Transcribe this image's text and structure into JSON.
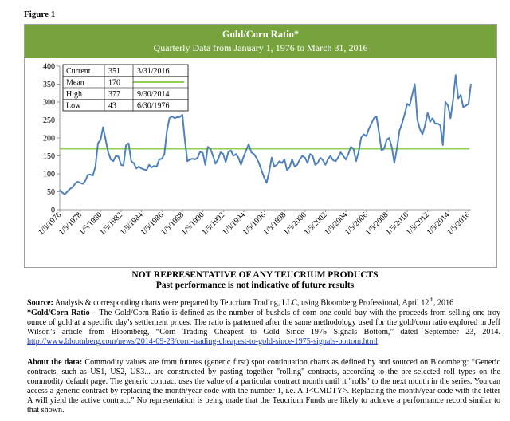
{
  "figure_label": "Figure 1",
  "chart_data": {
    "type": "line",
    "title": "Gold/Corn Ratio*",
    "subtitle": "Quarterly Data from January 1, 1976 to March 31, 2016",
    "ylim": [
      0,
      400
    ],
    "yticks": [
      0,
      50,
      100,
      150,
      200,
      250,
      300,
      350,
      400
    ],
    "xlim": [
      "1/5/1976",
      "3/31/2016"
    ],
    "xtick_labels": [
      "1/5/1976",
      "1/5/1978",
      "1/5/1980",
      "1/5/1982",
      "1/5/1984",
      "1/5/1986",
      "1/5/1988",
      "1/5/1990",
      "1/5/1992",
      "1/5/1994",
      "1/5/1996",
      "1/5/1998",
      "1/5/2000",
      "1/5/2002",
      "1/5/2004",
      "1/5/2006",
      "1/5/2008",
      "1/5/2010",
      "1/5/2012",
      "1/5/2014",
      "1/5/2016"
    ],
    "series": [
      {
        "color": "#4f81bd",
        "points": [
          [
            "1/5/1976",
            55
          ],
          [
            "4/1/1976",
            48
          ],
          [
            "6/30/1976",
            43
          ],
          [
            "10/1/1976",
            50
          ],
          [
            "1/3/1977",
            58
          ],
          [
            "4/1/1977",
            62
          ],
          [
            "7/1/1977",
            72
          ],
          [
            "10/3/1977",
            78
          ],
          [
            "1/3/1978",
            75
          ],
          [
            "4/3/1978",
            72
          ],
          [
            "7/3/1978",
            80
          ],
          [
            "10/2/1978",
            97
          ],
          [
            "1/2/1979",
            98
          ],
          [
            "4/2/1979",
            95
          ],
          [
            "7/2/1979",
            120
          ],
          [
            "10/1/1979",
            185
          ],
          [
            "1/2/1980",
            195
          ],
          [
            "4/1/1980",
            230
          ],
          [
            "7/1/1980",
            195
          ],
          [
            "10/1/1980",
            160
          ],
          [
            "1/2/1981",
            140
          ],
          [
            "4/1/1981",
            135
          ],
          [
            "7/1/1981",
            150
          ],
          [
            "10/1/1981",
            148
          ],
          [
            "1/4/1982",
            125
          ],
          [
            "4/1/1982",
            123
          ],
          [
            "7/1/1982",
            180
          ],
          [
            "10/1/1982",
            185
          ],
          [
            "1/3/1983",
            135
          ],
          [
            "4/1/1983",
            130
          ],
          [
            "7/1/1983",
            115
          ],
          [
            "10/3/1983",
            120
          ],
          [
            "1/3/1984",
            115
          ],
          [
            "4/2/1984",
            112
          ],
          [
            "7/2/1984",
            110
          ],
          [
            "10/1/1984",
            125
          ],
          [
            "1/2/1985",
            118
          ],
          [
            "4/1/1985",
            122
          ],
          [
            "7/1/1985",
            120
          ],
          [
            "10/1/1985",
            140
          ],
          [
            "1/2/1986",
            142
          ],
          [
            "4/1/1986",
            155
          ],
          [
            "7/1/1986",
            220
          ],
          [
            "10/1/1986",
            255
          ],
          [
            "1/2/1987",
            260
          ],
          [
            "4/1/1987",
            255
          ],
          [
            "7/1/1987",
            258
          ],
          [
            "10/1/1987",
            258
          ],
          [
            "1/4/1988",
            265
          ],
          [
            "4/1/1988",
            195
          ],
          [
            "7/1/1988",
            135
          ],
          [
            "10/3/1988",
            140
          ],
          [
            "1/3/1989",
            142
          ],
          [
            "4/3/1989",
            140
          ],
          [
            "7/3/1989",
            145
          ],
          [
            "10/2/1989",
            162
          ],
          [
            "1/2/1990",
            158
          ],
          [
            "4/2/1990",
            125
          ],
          [
            "7/2/1990",
            175
          ],
          [
            "10/1/1990",
            170
          ],
          [
            "1/2/1991",
            150
          ],
          [
            "4/1/1991",
            128
          ],
          [
            "7/1/1991",
            140
          ],
          [
            "10/1/1991",
            160
          ],
          [
            "1/2/1992",
            155
          ],
          [
            "4/1/1992",
            132
          ],
          [
            "7/1/1992",
            160
          ],
          [
            "10/1/1992",
            165
          ],
          [
            "1/4/1993",
            150
          ],
          [
            "4/1/1993",
            155
          ],
          [
            "7/1/1993",
            145
          ],
          [
            "10/1/1993",
            125
          ],
          [
            "1/3/1994",
            148
          ],
          [
            "4/1/1994",
            165
          ],
          [
            "7/1/1994",
            183
          ],
          [
            "10/3/1994",
            160
          ],
          [
            "1/3/1995",
            155
          ],
          [
            "4/3/1995",
            145
          ],
          [
            "7/3/1995",
            130
          ],
          [
            "10/2/1995",
            110
          ],
          [
            "1/2/1996",
            90
          ],
          [
            "4/1/1996",
            75
          ],
          [
            "7/1/1996",
            105
          ],
          [
            "10/1/1996",
            145
          ],
          [
            "1/2/1997",
            120
          ],
          [
            "4/1/1997",
            125
          ],
          [
            "7/1/1997",
            135
          ],
          [
            "10/1/1997",
            130
          ],
          [
            "1/2/1998",
            140
          ],
          [
            "4/1/1998",
            110
          ],
          [
            "7/1/1998",
            118
          ],
          [
            "10/1/1998",
            140
          ],
          [
            "1/4/1999",
            120
          ],
          [
            "4/1/1999",
            125
          ],
          [
            "7/1/1999",
            140
          ],
          [
            "10/1/1999",
            150
          ],
          [
            "1/3/2000",
            145
          ],
          [
            "4/3/2000",
            130
          ],
          [
            "7/3/2000",
            155
          ],
          [
            "10/2/2000",
            150
          ],
          [
            "1/2/2001",
            125
          ],
          [
            "4/2/2001",
            130
          ],
          [
            "7/2/2001",
            145
          ],
          [
            "10/1/2001",
            138
          ],
          [
            "1/2/2002",
            125
          ],
          [
            "4/1/2002",
            140
          ],
          [
            "7/1/2002",
            150
          ],
          [
            "10/1/2002",
            138
          ],
          [
            "1/2/2003",
            135
          ],
          [
            "4/1/2003",
            145
          ],
          [
            "7/1/2003",
            160
          ],
          [
            "10/1/2003",
            150
          ],
          [
            "1/2/2004",
            140
          ],
          [
            "4/1/2004",
            155
          ],
          [
            "7/1/2004",
            175
          ],
          [
            "10/1/2004",
            170
          ],
          [
            "1/3/2005",
            135
          ],
          [
            "4/1/2005",
            160
          ],
          [
            "7/1/2005",
            200
          ],
          [
            "10/3/2005",
            210
          ],
          [
            "1/3/2006",
            205
          ],
          [
            "4/3/2006",
            225
          ],
          [
            "7/3/2006",
            240
          ],
          [
            "10/2/2006",
            255
          ],
          [
            "1/2/2007",
            260
          ],
          [
            "4/2/2007",
            215
          ],
          [
            "7/2/2007",
            165
          ],
          [
            "10/1/2007",
            170
          ],
          [
            "1/2/2008",
            195
          ],
          [
            "4/1/2008",
            200
          ],
          [
            "7/1/2008",
            175
          ],
          [
            "10/1/2008",
            130
          ],
          [
            "1/2/2009",
            170
          ],
          [
            "4/1/2009",
            220
          ],
          [
            "7/1/2009",
            240
          ],
          [
            "10/1/2009",
            265
          ],
          [
            "1/4/2010",
            295
          ],
          [
            "4/1/2010",
            290
          ],
          [
            "7/1/2010",
            320
          ],
          [
            "10/1/2010",
            350
          ],
          [
            "1/3/2011",
            250
          ],
          [
            "4/1/2011",
            225
          ],
          [
            "7/1/2011",
            210
          ],
          [
            "10/3/2011",
            235
          ],
          [
            "1/3/2012",
            270
          ],
          [
            "4/2/2012",
            245
          ],
          [
            "7/2/2012",
            255
          ],
          [
            "10/1/2012",
            240
          ],
          [
            "1/2/2013",
            240
          ],
          [
            "4/1/2013",
            235
          ],
          [
            "7/1/2013",
            180
          ],
          [
            "10/1/2013",
            300
          ],
          [
            "1/2/2014",
            290
          ],
          [
            "4/1/2014",
            255
          ],
          [
            "7/1/2014",
            305
          ],
          [
            "10/1/2014",
            375
          ],
          [
            "1/2/2015",
            310
          ],
          [
            "4/1/2015",
            320
          ],
          [
            "7/1/2015",
            285
          ],
          [
            "10/1/2015",
            290
          ],
          [
            "1/4/2016",
            295
          ],
          [
            "3/31/2016",
            351
          ]
        ]
      },
      {
        "name": "Mean",
        "color": "#92d050",
        "constant": 170
      }
    ],
    "stats_table": [
      {
        "label": "Current",
        "value": "351",
        "date": "3/31/2016"
      },
      {
        "label": "Mean",
        "value": "170",
        "date": ""
      },
      {
        "label": "High",
        "value": "377",
        "date": "9/30/2014"
      },
      {
        "label": "Low",
        "value": "43",
        "date": "6/30/1976"
      }
    ]
  },
  "disclaimer": {
    "line1": "NOT REPRESENTATIVE OF ANY TEUCRIUM PRODUCTS",
    "line2": "Past performance is not indicative of future results"
  },
  "source": {
    "label": "Source:",
    "text": " Analysis & corresponding charts were prepared by Teucrium Trading, LLC, using Bloomberg Professional, April 12",
    "sup": "th",
    "tail": ", 2016"
  },
  "definition": {
    "label": "*Gold/Corn Ratio –",
    "text": " The Gold/Corn Ratio is defined as the number of bushels of corn one could buy with the proceeds from selling one troy ounce of gold at a specific day’s settlement prices. The ratio is patterned after the same methodology used for the gold/corn ratio explored in Jeff Wilson’s article from Bloomberg, “Corn Trading Cheapest to Gold Since 1975 Signals Bottom,” dated September 23, 2014.",
    "link": "http://www.bloomberg.com/news/2014-09-23/corn-trading-cheapest-to-gold-since-1975-signals-bottom.html"
  },
  "about": {
    "label": "About the data:",
    "text": " Commodity values are from futures (generic first) spot continuation charts as defined by and sourced on Bloomberg: “Generic contracts, such as US1, US2, US3... are constructed by pasting together \"rolling\" contracts, according to the pre-selected roll types on the commodity default page. The generic contract uses the value of a particular contract month until it \"rolls\" to the next month in the series. You can access a generic contract by replacing the month/year code with the number 1, i.e. A 1<CMDTY>. Replacing the month/year code with the letter A will yield the active contract.” No representation is being made that the Teucrium Funds are likely to achieve a performance record similar to that shown."
  }
}
